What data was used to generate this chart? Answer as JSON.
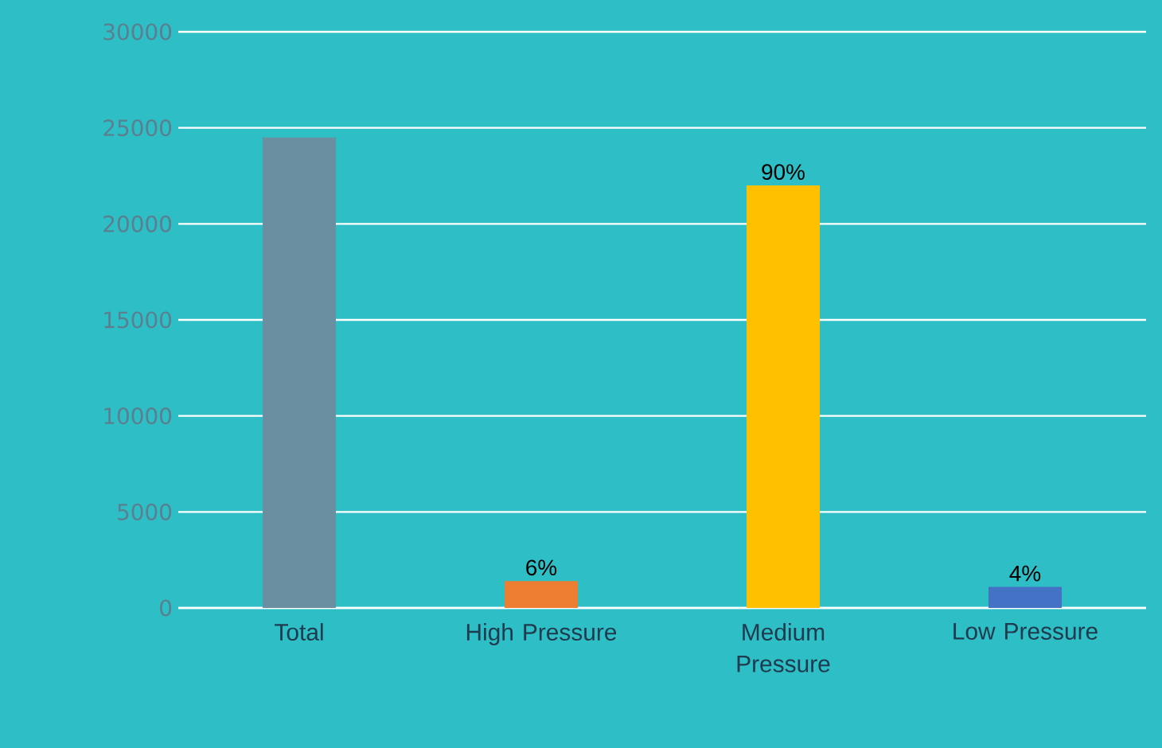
{
  "chart_data": {
    "type": "bar",
    "categories": [
      "Total",
      "High Pressure",
      "Medium Pressure",
      "Low Pressure"
    ],
    "values": [
      24500,
      1400,
      22000,
      1100
    ],
    "colors": [
      "#6a8fa0",
      "#ed7d31",
      "#ffc000",
      "#4472c4"
    ],
    "annotations": [
      {
        "text": "6%",
        "x": "High Pressure",
        "y": 1400
      },
      {
        "text": "90%",
        "x": "Medium Pressure",
        "y": 22000
      },
      {
        "text": "4%",
        "x": "Low Pressure",
        "y": 1100
      }
    ],
    "ylim": [
      0,
      30000
    ],
    "yticks": [
      0,
      5000,
      10000,
      15000,
      20000,
      25000,
      30000
    ],
    "grid": "y"
  }
}
